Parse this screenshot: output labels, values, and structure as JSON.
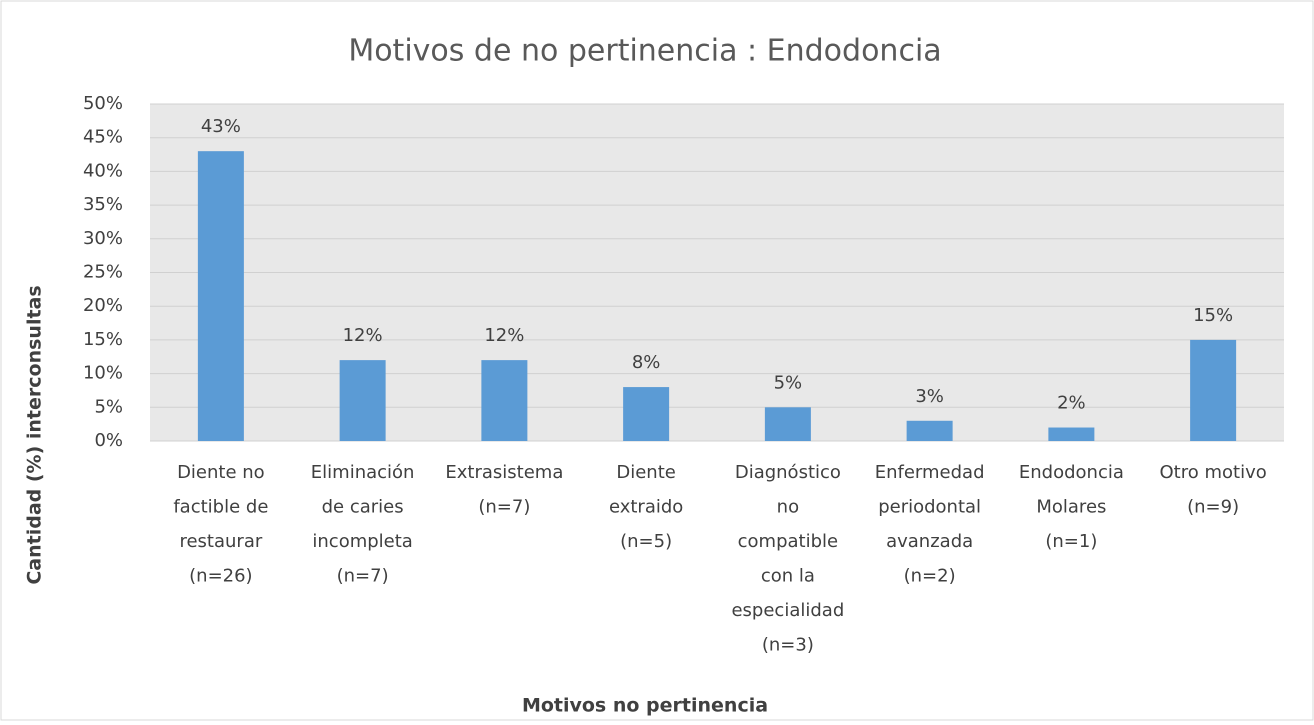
{
  "chart_data": {
    "type": "bar",
    "title": "Motivos de no pertinencia : Endodoncia",
    "x_label": "Motivos no pertinencia",
    "y_label": "Cantidad (%) interconsultas",
    "categories": [
      [
        "Diente no",
        "factible de",
        "restaurar",
        "(n=26)"
      ],
      [
        "Eliminación",
        "de caries",
        "incompleta",
        "(n=7)"
      ],
      [
        "Extrasistema",
        "(n=7)"
      ],
      [
        "Diente",
        "extraido",
        "(n=5)"
      ],
      [
        "Diagnóstico",
        "no",
        "compatible",
        "con la",
        "especialidad",
        "(n=3)"
      ],
      [
        "Enfermedad",
        "periodontal",
        "avanzada",
        "(n=2)"
      ],
      [
        "Endodoncia",
        "Molares",
        "(n=1)"
      ],
      [
        "Otro motivo",
        "(n=9)"
      ]
    ],
    "values": [
      43,
      12,
      12,
      8,
      5,
      3,
      2,
      15
    ],
    "value_labels": [
      "43%",
      "12%",
      "12%",
      "8%",
      "5%",
      "3%",
      "2%",
      "15%"
    ],
    "color": "#5b9bd5",
    "ylim": [
      0,
      50
    ],
    "yticks": [
      {
        "value": 0,
        "label": "0%"
      },
      {
        "value": 5,
        "label": "5%"
      },
      {
        "value": 10,
        "label": "10%"
      },
      {
        "value": 15,
        "label": "15%"
      },
      {
        "value": 20,
        "label": "20%"
      },
      {
        "value": 25,
        "label": "25%"
      },
      {
        "value": 30,
        "label": "30%"
      },
      {
        "value": 35,
        "label": "35%"
      },
      {
        "value": 40,
        "label": "40%"
      },
      {
        "value": 45,
        "label": "45%"
      },
      {
        "value": 50,
        "label": "50%"
      }
    ],
    "grid": true
  }
}
